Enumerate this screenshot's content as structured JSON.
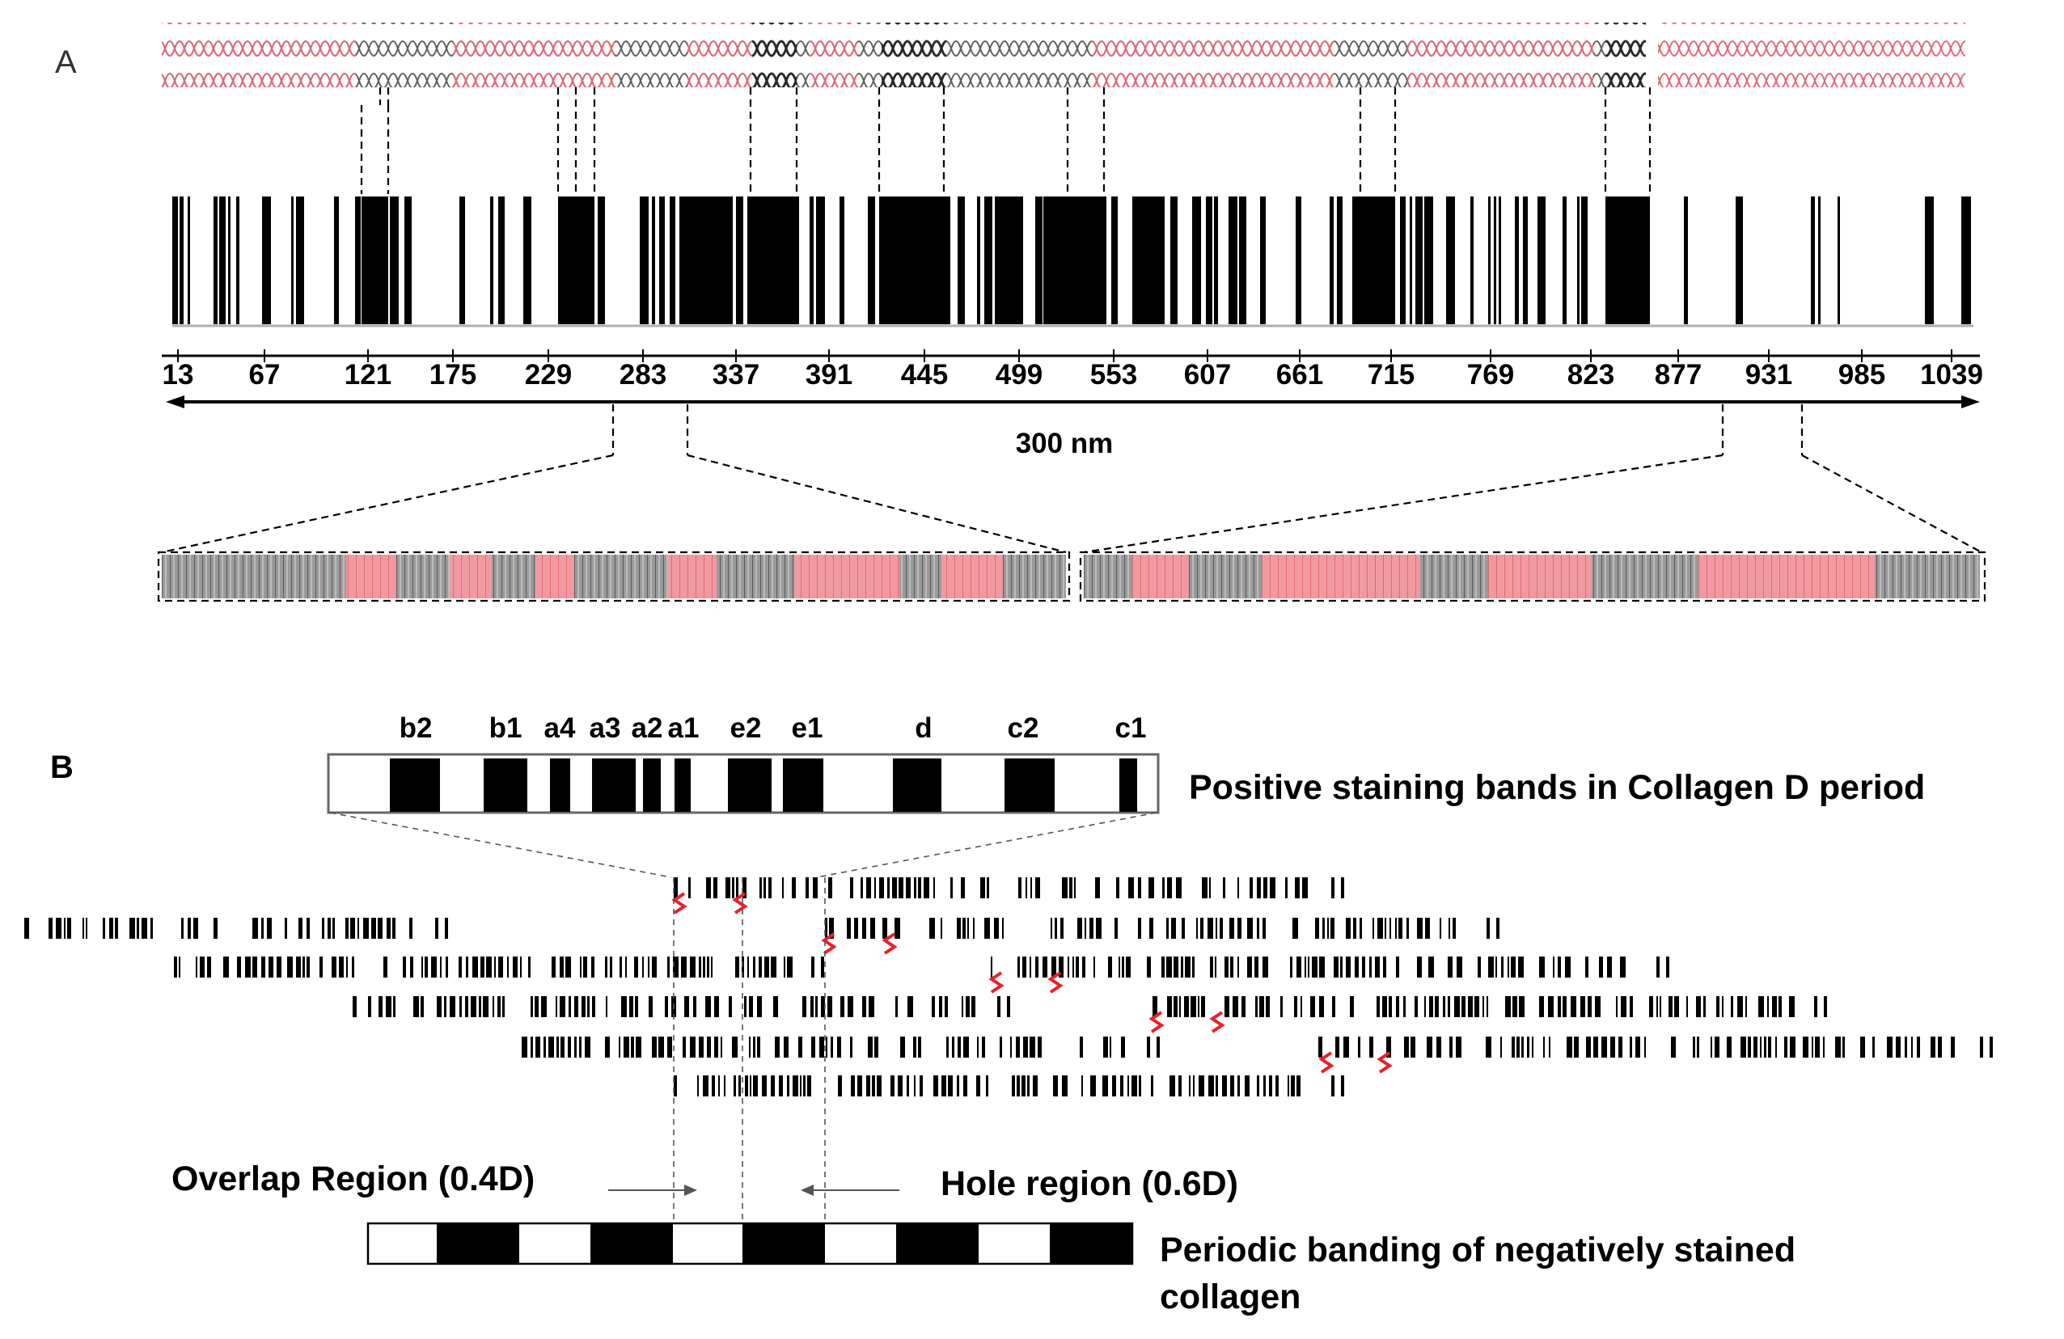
{
  "panel_a": {
    "letter": "A",
    "tick_labels": [
      "13",
      "67",
      "121",
      "175",
      "229",
      "283",
      "337",
      "391",
      "445",
      "499",
      "553",
      "607",
      "661",
      "715",
      "769",
      "823",
      "877",
      "931",
      "985",
      "1039"
    ],
    "scale_label": "300 nm",
    "colors": {
      "helix_red": "#e8707a",
      "helix_grey": "#707070",
      "band_black": "#000000"
    }
  },
  "panel_b": {
    "letter": "B",
    "band_labels": [
      "b2",
      "b1",
      "a4",
      "a3",
      "a2",
      "a1",
      "e2",
      "e1",
      "d",
      "c2",
      "c1"
    ],
    "positive_caption": "Positive staining bands in Collagen D period",
    "overlap_label": "Overlap Region (0.4D)",
    "hole_label": "Hole region (0.6D)",
    "negative_caption_line1": "Periodic banding of negatively stained",
    "negative_caption_line2": "collagen",
    "colors": {
      "squiggle_red": "#e8202a"
    }
  }
}
